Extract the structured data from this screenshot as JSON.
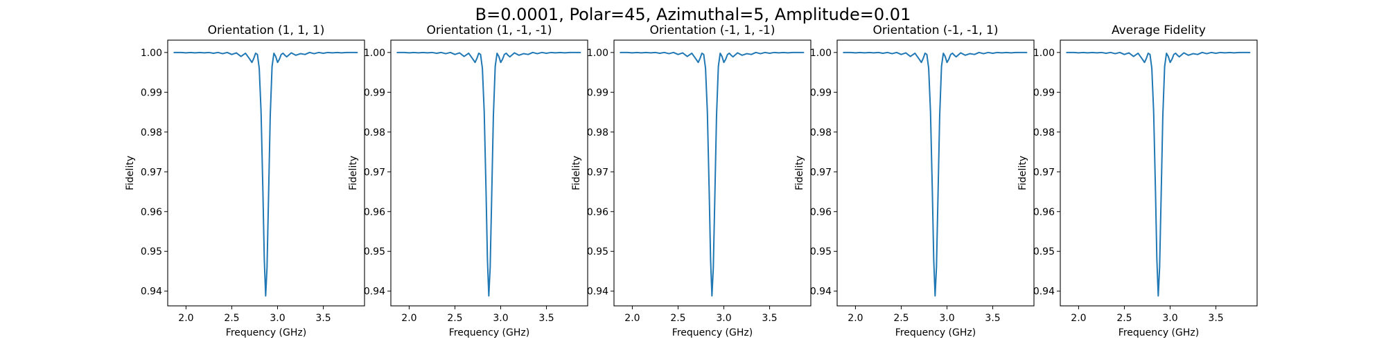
{
  "figure": {
    "title": "B=0.0001, Polar=45, Azimuthal=5, Amplitude=0.01"
  },
  "style": {
    "line_color": "#1f77b4",
    "axes_color": "#000000",
    "background": "#ffffff"
  },
  "chart_data": [
    {
      "type": "line",
      "title": "Orientation (1, 1, 1)",
      "xlabel": "Frequency (GHz)",
      "ylabel": "Fidelity",
      "xlim": [
        1.8,
        3.95
      ],
      "ylim": [
        0.9363,
        1.0031
      ],
      "xticks": [
        "2.0",
        "2.5",
        "3.0",
        "3.5"
      ],
      "yticks": [
        "0.94",
        "0.95",
        "0.96",
        "0.97",
        "0.98",
        "0.99",
        "1.00"
      ],
      "grid": false,
      "legend": "none",
      "x": [
        1.87,
        1.95,
        2.0,
        2.05,
        2.1,
        2.15,
        2.2,
        2.25,
        2.3,
        2.35,
        2.4,
        2.45,
        2.5,
        2.55,
        2.6,
        2.65,
        2.7,
        2.72,
        2.74,
        2.76,
        2.78,
        2.8,
        2.82,
        2.84,
        2.855,
        2.87,
        2.885,
        2.9,
        2.92,
        2.94,
        2.96,
        2.98,
        3.0,
        3.02,
        3.04,
        3.06,
        3.08,
        3.1,
        3.15,
        3.2,
        3.25,
        3.3,
        3.35,
        3.4,
        3.45,
        3.5,
        3.55,
        3.6,
        3.65,
        3.7,
        3.75,
        3.8,
        3.87
      ],
      "y": [
        1.0,
        1.0,
        0.9999,
        1.0,
        0.9999,
        1.0,
        0.9999,
        1.0,
        0.9998,
        1.0,
        0.9997,
        1.0,
        0.9995,
        0.9999,
        0.999,
        0.9998,
        0.9982,
        0.9975,
        0.9985,
        0.9998,
        0.9995,
        0.996,
        0.985,
        0.965,
        0.948,
        0.9388,
        0.946,
        0.962,
        0.984,
        0.9965,
        0.9998,
        0.999,
        0.9975,
        0.9983,
        0.9995,
        0.9998,
        0.9993,
        0.9989,
        0.9999,
        0.9993,
        0.9997,
        0.9995,
        1.0,
        0.9997,
        1.0,
        0.9998,
        1.0,
        0.9999,
        1.0,
        0.9999,
        1.0,
        1.0,
        1.0
      ]
    },
    {
      "type": "line",
      "title": "Orientation (1, -1, -1)",
      "xlabel": "Frequency (GHz)",
      "ylabel": "Fidelity",
      "xlim": [
        1.8,
        3.95
      ],
      "ylim": [
        0.9363,
        1.0031
      ],
      "xticks": [
        "2.0",
        "2.5",
        "3.0",
        "3.5"
      ],
      "yticks": [
        "0.94",
        "0.95",
        "0.96",
        "0.97",
        "0.98",
        "0.99",
        "1.00"
      ],
      "grid": false,
      "legend": "none",
      "x": [
        1.87,
        1.95,
        2.0,
        2.05,
        2.1,
        2.15,
        2.2,
        2.25,
        2.3,
        2.35,
        2.4,
        2.45,
        2.5,
        2.55,
        2.6,
        2.65,
        2.7,
        2.72,
        2.74,
        2.76,
        2.78,
        2.8,
        2.82,
        2.84,
        2.855,
        2.87,
        2.885,
        2.9,
        2.92,
        2.94,
        2.96,
        2.98,
        3.0,
        3.02,
        3.04,
        3.06,
        3.08,
        3.1,
        3.15,
        3.2,
        3.25,
        3.3,
        3.35,
        3.4,
        3.45,
        3.5,
        3.55,
        3.6,
        3.65,
        3.7,
        3.75,
        3.8,
        3.87
      ],
      "y": [
        1.0,
        1.0,
        0.9999,
        1.0,
        0.9999,
        1.0,
        0.9999,
        1.0,
        0.9998,
        1.0,
        0.9997,
        1.0,
        0.9995,
        0.9999,
        0.999,
        0.9998,
        0.9982,
        0.9975,
        0.9985,
        0.9998,
        0.9995,
        0.996,
        0.985,
        0.965,
        0.948,
        0.9388,
        0.946,
        0.962,
        0.984,
        0.9965,
        0.9998,
        0.999,
        0.9975,
        0.9983,
        0.9995,
        0.9998,
        0.9993,
        0.9989,
        0.9999,
        0.9993,
        0.9997,
        0.9995,
        1.0,
        0.9997,
        1.0,
        0.9998,
        1.0,
        0.9999,
        1.0,
        0.9999,
        1.0,
        1.0,
        1.0
      ]
    },
    {
      "type": "line",
      "title": "Orientation (-1, 1, -1)",
      "xlabel": "Frequency (GHz)",
      "ylabel": "Fidelity",
      "xlim": [
        1.8,
        3.95
      ],
      "ylim": [
        0.9363,
        1.0031
      ],
      "xticks": [
        "2.0",
        "2.5",
        "3.0",
        "3.5"
      ],
      "yticks": [
        "0.94",
        "0.95",
        "0.96",
        "0.97",
        "0.98",
        "0.99",
        "1.00"
      ],
      "grid": false,
      "legend": "none",
      "x": [
        1.87,
        1.95,
        2.0,
        2.05,
        2.1,
        2.15,
        2.2,
        2.25,
        2.3,
        2.35,
        2.4,
        2.45,
        2.5,
        2.55,
        2.6,
        2.65,
        2.7,
        2.72,
        2.74,
        2.76,
        2.78,
        2.8,
        2.82,
        2.84,
        2.855,
        2.87,
        2.885,
        2.9,
        2.92,
        2.94,
        2.96,
        2.98,
        3.0,
        3.02,
        3.04,
        3.06,
        3.08,
        3.1,
        3.15,
        3.2,
        3.25,
        3.3,
        3.35,
        3.4,
        3.45,
        3.5,
        3.55,
        3.6,
        3.65,
        3.7,
        3.75,
        3.8,
        3.87
      ],
      "y": [
        1.0,
        1.0,
        0.9999,
        1.0,
        0.9999,
        1.0,
        0.9999,
        1.0,
        0.9998,
        1.0,
        0.9997,
        1.0,
        0.9995,
        0.9999,
        0.999,
        0.9998,
        0.9982,
        0.9975,
        0.9985,
        0.9998,
        0.9995,
        0.996,
        0.985,
        0.965,
        0.948,
        0.9388,
        0.946,
        0.962,
        0.984,
        0.9965,
        0.9998,
        0.999,
        0.9975,
        0.9983,
        0.9995,
        0.9998,
        0.9993,
        0.9989,
        0.9999,
        0.9993,
        0.9997,
        0.9995,
        1.0,
        0.9997,
        1.0,
        0.9998,
        1.0,
        0.9999,
        1.0,
        0.9999,
        1.0,
        1.0,
        1.0
      ]
    },
    {
      "type": "line",
      "title": "Orientation (-1, -1, 1)",
      "xlabel": "Frequency (GHz)",
      "ylabel": "Fidelity",
      "xlim": [
        1.8,
        3.95
      ],
      "ylim": [
        0.9363,
        1.0031
      ],
      "xticks": [
        "2.0",
        "2.5",
        "3.0",
        "3.5"
      ],
      "yticks": [
        "0.94",
        "0.95",
        "0.96",
        "0.97",
        "0.98",
        "0.99",
        "1.00"
      ],
      "grid": false,
      "legend": "none",
      "x": [
        1.87,
        1.95,
        2.0,
        2.05,
        2.1,
        2.15,
        2.2,
        2.25,
        2.3,
        2.35,
        2.4,
        2.45,
        2.5,
        2.55,
        2.6,
        2.65,
        2.7,
        2.72,
        2.74,
        2.76,
        2.78,
        2.8,
        2.82,
        2.84,
        2.855,
        2.87,
        2.885,
        2.9,
        2.92,
        2.94,
        2.96,
        2.98,
        3.0,
        3.02,
        3.04,
        3.06,
        3.08,
        3.1,
        3.15,
        3.2,
        3.25,
        3.3,
        3.35,
        3.4,
        3.45,
        3.5,
        3.55,
        3.6,
        3.65,
        3.7,
        3.75,
        3.8,
        3.87
      ],
      "y": [
        1.0,
        1.0,
        0.9999,
        1.0,
        0.9999,
        1.0,
        0.9999,
        1.0,
        0.9998,
        1.0,
        0.9997,
        1.0,
        0.9995,
        0.9999,
        0.999,
        0.9998,
        0.9982,
        0.9975,
        0.9985,
        0.9998,
        0.9995,
        0.996,
        0.985,
        0.965,
        0.948,
        0.9388,
        0.946,
        0.962,
        0.984,
        0.9965,
        0.9998,
        0.999,
        0.9975,
        0.9983,
        0.9995,
        0.9998,
        0.9993,
        0.9989,
        0.9999,
        0.9993,
        0.9997,
        0.9995,
        1.0,
        0.9997,
        1.0,
        0.9998,
        1.0,
        0.9999,
        1.0,
        0.9999,
        1.0,
        1.0,
        1.0
      ]
    },
    {
      "type": "line",
      "title": "Average Fidelity",
      "xlabel": "Frequency (GHz)",
      "ylabel": "Fidelity",
      "xlim": [
        1.8,
        3.95
      ],
      "ylim": [
        0.9363,
        1.0031
      ],
      "xticks": [
        "2.0",
        "2.5",
        "3.0",
        "3.5"
      ],
      "yticks": [
        "0.94",
        "0.95",
        "0.96",
        "0.97",
        "0.98",
        "0.99",
        "1.00"
      ],
      "grid": false,
      "legend": "none",
      "x": [
        1.87,
        1.95,
        2.0,
        2.05,
        2.1,
        2.15,
        2.2,
        2.25,
        2.3,
        2.35,
        2.4,
        2.45,
        2.5,
        2.55,
        2.6,
        2.65,
        2.7,
        2.72,
        2.74,
        2.76,
        2.78,
        2.8,
        2.82,
        2.84,
        2.855,
        2.87,
        2.885,
        2.9,
        2.92,
        2.94,
        2.96,
        2.98,
        3.0,
        3.02,
        3.04,
        3.06,
        3.08,
        3.1,
        3.15,
        3.2,
        3.25,
        3.3,
        3.35,
        3.4,
        3.45,
        3.5,
        3.55,
        3.6,
        3.65,
        3.7,
        3.75,
        3.8,
        3.87
      ],
      "y": [
        1.0,
        1.0,
        0.9999,
        1.0,
        0.9999,
        1.0,
        0.9999,
        1.0,
        0.9998,
        1.0,
        0.9997,
        1.0,
        0.9995,
        0.9999,
        0.999,
        0.9998,
        0.9982,
        0.9975,
        0.9985,
        0.9998,
        0.9995,
        0.996,
        0.985,
        0.965,
        0.948,
        0.9388,
        0.946,
        0.962,
        0.984,
        0.9965,
        0.9998,
        0.999,
        0.9975,
        0.9983,
        0.9995,
        0.9998,
        0.9993,
        0.9989,
        0.9999,
        0.9993,
        0.9997,
        0.9995,
        1.0,
        0.9997,
        1.0,
        0.9998,
        1.0,
        0.9999,
        1.0,
        0.9999,
        1.0,
        1.0,
        1.0
      ]
    }
  ]
}
